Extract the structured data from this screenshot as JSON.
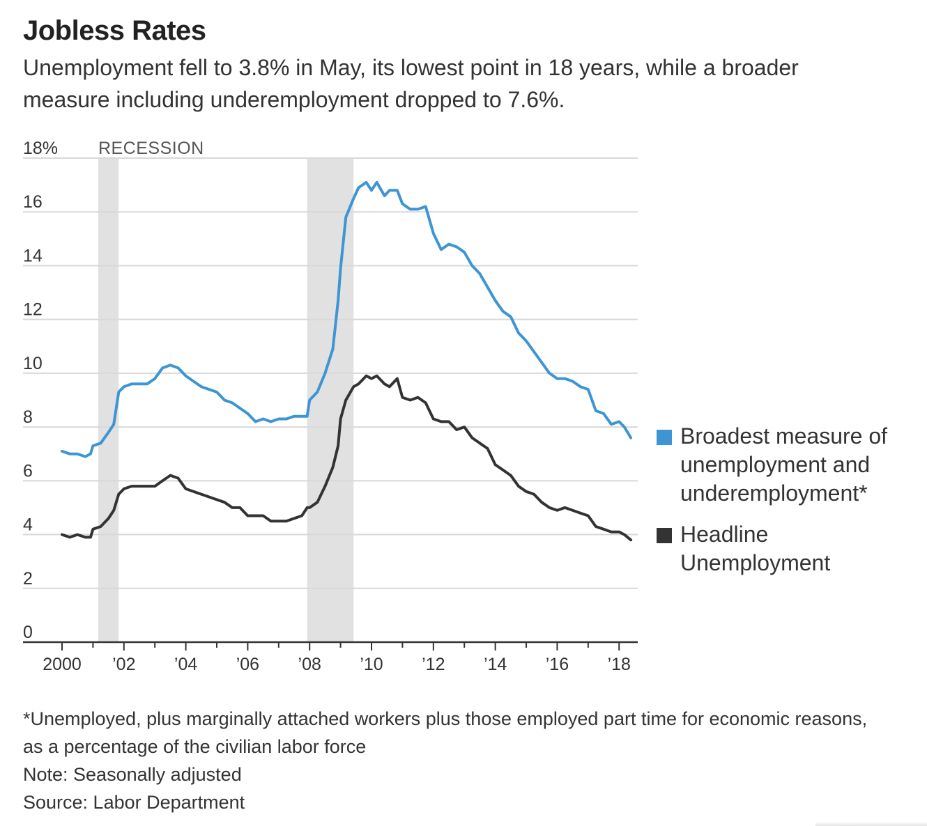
{
  "title": "Jobless Rates",
  "subtitle": "Unemployment fell to 3.8% in May, its lowest point in 18 years, while a broader measure including underemployment dropped to 7.6%.",
  "footnotes": [
    "*Unemployed, plus marginally attached workers plus those employed part time for economic reasons, as a percentage of the civilian labor force",
    "Note: Seasonally adjusted",
    "Source: Labor Department"
  ],
  "chart_data": {
    "type": "line",
    "title": "Jobless Rates",
    "xlabel": "",
    "ylabel": "",
    "ylim": [
      0,
      18
    ],
    "xlim": [
      2000.0,
      2018.4
    ],
    "yticks": [
      0,
      2,
      4,
      6,
      8,
      10,
      12,
      14,
      16,
      18
    ],
    "ytick_labels": [
      "0",
      "2",
      "4",
      "6",
      "8",
      "10",
      "12",
      "14",
      "16",
      "18%"
    ],
    "xticks": [
      2000,
      2002,
      2004,
      2006,
      2008,
      2010,
      2012,
      2014,
      2016,
      2018
    ],
    "xtick_labels": [
      "2000",
      "’02",
      "’04",
      "’06",
      "’08",
      "’10",
      "’12",
      "’14",
      "’16",
      "’18"
    ],
    "grid": true,
    "legend_position": "right",
    "recession_label": "RECESSION",
    "recessions": [
      [
        2001.17,
        2001.83
      ],
      [
        2007.92,
        2009.42
      ]
    ],
    "colors": {
      "broad": "#3d95d4",
      "headline": "#333333",
      "recession": "#e1e1e1",
      "grid": "#d8d8d8"
    },
    "series": [
      {
        "name": "Broadest measure of unemployment and underemployment*",
        "color": "#3d95d4",
        "points": [
          [
            2000.0,
            7.1
          ],
          [
            2000.25,
            7.0
          ],
          [
            2000.5,
            7.0
          ],
          [
            2000.75,
            6.9
          ],
          [
            2000.92,
            7.0
          ],
          [
            2001.0,
            7.3
          ],
          [
            2001.25,
            7.4
          ],
          [
            2001.5,
            7.8
          ],
          [
            2001.67,
            8.1
          ],
          [
            2001.83,
            9.3
          ],
          [
            2002.0,
            9.5
          ],
          [
            2002.25,
            9.6
          ],
          [
            2002.5,
            9.6
          ],
          [
            2002.75,
            9.6
          ],
          [
            2003.0,
            9.8
          ],
          [
            2003.25,
            10.2
          ],
          [
            2003.5,
            10.3
          ],
          [
            2003.75,
            10.2
          ],
          [
            2004.0,
            9.9
          ],
          [
            2004.25,
            9.7
          ],
          [
            2004.5,
            9.5
          ],
          [
            2004.75,
            9.4
          ],
          [
            2005.0,
            9.3
          ],
          [
            2005.25,
            9.0
          ],
          [
            2005.5,
            8.9
          ],
          [
            2005.75,
            8.7
          ],
          [
            2006.0,
            8.5
          ],
          [
            2006.25,
            8.2
          ],
          [
            2006.5,
            8.3
          ],
          [
            2006.75,
            8.2
          ],
          [
            2007.0,
            8.3
          ],
          [
            2007.25,
            8.3
          ],
          [
            2007.5,
            8.4
          ],
          [
            2007.75,
            8.4
          ],
          [
            2007.92,
            8.4
          ],
          [
            2008.0,
            9.0
          ],
          [
            2008.25,
            9.3
          ],
          [
            2008.5,
            10.0
          ],
          [
            2008.75,
            10.9
          ],
          [
            2008.92,
            12.7
          ],
          [
            2009.0,
            13.9
          ],
          [
            2009.17,
            15.8
          ],
          [
            2009.42,
            16.5
          ],
          [
            2009.58,
            16.9
          ],
          [
            2009.83,
            17.1
          ],
          [
            2010.0,
            16.8
          ],
          [
            2010.17,
            17.1
          ],
          [
            2010.42,
            16.6
          ],
          [
            2010.58,
            16.8
          ],
          [
            2010.83,
            16.8
          ],
          [
            2011.0,
            16.3
          ],
          [
            2011.25,
            16.1
          ],
          [
            2011.5,
            16.1
          ],
          [
            2011.75,
            16.2
          ],
          [
            2012.0,
            15.2
          ],
          [
            2012.25,
            14.6
          ],
          [
            2012.5,
            14.8
          ],
          [
            2012.75,
            14.7
          ],
          [
            2013.0,
            14.5
          ],
          [
            2013.25,
            14.0
          ],
          [
            2013.5,
            13.7
          ],
          [
            2013.75,
            13.2
          ],
          [
            2014.0,
            12.7
          ],
          [
            2014.25,
            12.3
          ],
          [
            2014.5,
            12.1
          ],
          [
            2014.75,
            11.5
          ],
          [
            2015.0,
            11.2
          ],
          [
            2015.25,
            10.8
          ],
          [
            2015.5,
            10.4
          ],
          [
            2015.75,
            10.0
          ],
          [
            2016.0,
            9.8
          ],
          [
            2016.25,
            9.8
          ],
          [
            2016.5,
            9.7
          ],
          [
            2016.75,
            9.5
          ],
          [
            2017.0,
            9.4
          ],
          [
            2017.25,
            8.6
          ],
          [
            2017.5,
            8.5
          ],
          [
            2017.75,
            8.1
          ],
          [
            2018.0,
            8.2
          ],
          [
            2018.17,
            8.0
          ],
          [
            2018.38,
            7.6
          ]
        ]
      },
      {
        "name": "Headline Unemployment",
        "color": "#333333",
        "points": [
          [
            2000.0,
            4.0
          ],
          [
            2000.25,
            3.9
          ],
          [
            2000.5,
            4.0
          ],
          [
            2000.75,
            3.9
          ],
          [
            2000.92,
            3.9
          ],
          [
            2001.0,
            4.2
          ],
          [
            2001.25,
            4.3
          ],
          [
            2001.5,
            4.6
          ],
          [
            2001.67,
            4.9
          ],
          [
            2001.83,
            5.5
          ],
          [
            2002.0,
            5.7
          ],
          [
            2002.25,
            5.8
          ],
          [
            2002.5,
            5.8
          ],
          [
            2002.75,
            5.8
          ],
          [
            2003.0,
            5.8
          ],
          [
            2003.25,
            6.0
          ],
          [
            2003.5,
            6.2
          ],
          [
            2003.75,
            6.1
          ],
          [
            2004.0,
            5.7
          ],
          [
            2004.25,
            5.6
          ],
          [
            2004.5,
            5.5
          ],
          [
            2004.75,
            5.4
          ],
          [
            2005.0,
            5.3
          ],
          [
            2005.25,
            5.2
          ],
          [
            2005.5,
            5.0
          ],
          [
            2005.75,
            5.0
          ],
          [
            2006.0,
            4.7
          ],
          [
            2006.25,
            4.7
          ],
          [
            2006.5,
            4.7
          ],
          [
            2006.75,
            4.5
          ],
          [
            2007.0,
            4.5
          ],
          [
            2007.25,
            4.5
          ],
          [
            2007.5,
            4.6
          ],
          [
            2007.75,
            4.7
          ],
          [
            2007.92,
            5.0
          ],
          [
            2008.0,
            5.0
          ],
          [
            2008.25,
            5.2
          ],
          [
            2008.5,
            5.8
          ],
          [
            2008.75,
            6.5
          ],
          [
            2008.92,
            7.3
          ],
          [
            2009.0,
            8.3
          ],
          [
            2009.17,
            9.0
          ],
          [
            2009.42,
            9.5
          ],
          [
            2009.58,
            9.6
          ],
          [
            2009.83,
            9.9
          ],
          [
            2010.0,
            9.8
          ],
          [
            2010.17,
            9.9
          ],
          [
            2010.42,
            9.6
          ],
          [
            2010.58,
            9.5
          ],
          [
            2010.83,
            9.8
          ],
          [
            2011.0,
            9.1
          ],
          [
            2011.25,
            9.0
          ],
          [
            2011.5,
            9.1
          ],
          [
            2011.75,
            8.9
          ],
          [
            2012.0,
            8.3
          ],
          [
            2012.25,
            8.2
          ],
          [
            2012.5,
            8.2
          ],
          [
            2012.75,
            7.9
          ],
          [
            2013.0,
            8.0
          ],
          [
            2013.25,
            7.6
          ],
          [
            2013.5,
            7.4
          ],
          [
            2013.75,
            7.2
          ],
          [
            2014.0,
            6.6
          ],
          [
            2014.25,
            6.4
          ],
          [
            2014.5,
            6.2
          ],
          [
            2014.75,
            5.8
          ],
          [
            2015.0,
            5.6
          ],
          [
            2015.25,
            5.5
          ],
          [
            2015.5,
            5.2
          ],
          [
            2015.75,
            5.0
          ],
          [
            2016.0,
            4.9
          ],
          [
            2016.25,
            5.0
          ],
          [
            2016.5,
            4.9
          ],
          [
            2016.75,
            4.8
          ],
          [
            2017.0,
            4.7
          ],
          [
            2017.25,
            4.3
          ],
          [
            2017.5,
            4.2
          ],
          [
            2017.75,
            4.1
          ],
          [
            2018.0,
            4.1
          ],
          [
            2018.17,
            4.0
          ],
          [
            2018.38,
            3.8
          ]
        ]
      }
    ]
  }
}
